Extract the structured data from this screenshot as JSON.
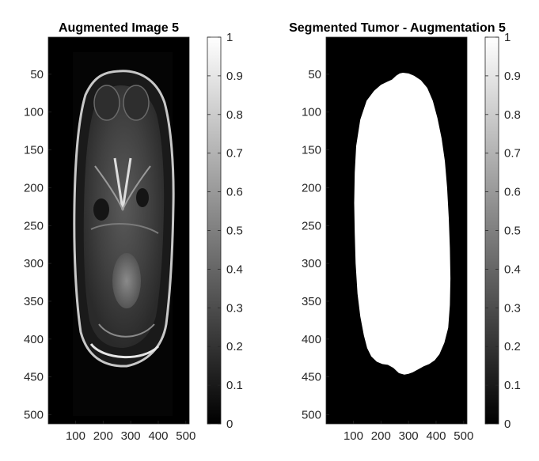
{
  "chart_data": [
    {
      "type": "heatmap",
      "title": "Augmented Image 5",
      "xlabel": "",
      "ylabel": "",
      "xlim": [
        1,
        512
      ],
      "ylim": [
        1,
        512
      ],
      "xticks": [
        100,
        200,
        300,
        400,
        500
      ],
      "yticks": [
        50,
        100,
        150,
        200,
        250,
        300,
        350,
        400,
        450,
        500
      ],
      "colormap": "gray",
      "clim": [
        0,
        1
      ],
      "colorbar_ticks": [
        0,
        0.1,
        0.2,
        0.3,
        0.4,
        0.5,
        0.6,
        0.7,
        0.8,
        0.9,
        1
      ],
      "colorbar_labels": [
        "0",
        "0.1",
        "0.2",
        "0.3",
        "0.4",
        "0.5",
        "0.6",
        "0.7",
        "0.8",
        "0.9",
        "1"
      ],
      "image_content": "grayscale axial MRI slice"
    },
    {
      "type": "heatmap",
      "title": "Segmented Tumor - Augmentation 5",
      "xlabel": "",
      "ylabel": "",
      "xlim": [
        1,
        512
      ],
      "ylim": [
        1,
        512
      ],
      "xticks": [
        100,
        200,
        300,
        400,
        500
      ],
      "yticks": [
        50,
        100,
        150,
        200,
        250,
        300,
        350,
        400,
        450,
        500
      ],
      "colormap": "gray",
      "clim": [
        0,
        1
      ],
      "colorbar_ticks": [
        0,
        0.1,
        0.2,
        0.3,
        0.4,
        0.5,
        0.6,
        0.7,
        0.8,
        0.9,
        1
      ],
      "colorbar_labels": [
        "0",
        "0.1",
        "0.2",
        "0.3",
        "0.4",
        "0.5",
        "0.6",
        "0.7",
        "0.8",
        "0.9",
        "1"
      ],
      "image_content": "binary mask, white region on black background",
      "mask_outline": [
        {
          "x": 280,
          "y": 48
        },
        {
          "x": 300,
          "y": 49
        },
        {
          "x": 320,
          "y": 52
        },
        {
          "x": 345,
          "y": 58
        },
        {
          "x": 368,
          "y": 68
        },
        {
          "x": 388,
          "y": 85
        },
        {
          "x": 405,
          "y": 108
        },
        {
          "x": 420,
          "y": 135
        },
        {
          "x": 432,
          "y": 165
        },
        {
          "x": 440,
          "y": 200
        },
        {
          "x": 446,
          "y": 240
        },
        {
          "x": 450,
          "y": 280
        },
        {
          "x": 452,
          "y": 320
        },
        {
          "x": 450,
          "y": 355
        },
        {
          "x": 444,
          "y": 385
        },
        {
          "x": 430,
          "y": 405
        },
        {
          "x": 412,
          "y": 420
        },
        {
          "x": 395,
          "y": 428
        },
        {
          "x": 375,
          "y": 433
        },
        {
          "x": 355,
          "y": 436
        },
        {
          "x": 335,
          "y": 440
        },
        {
          "x": 315,
          "y": 444
        },
        {
          "x": 300,
          "y": 446
        },
        {
          "x": 285,
          "y": 447
        },
        {
          "x": 265,
          "y": 445
        },
        {
          "x": 245,
          "y": 438
        },
        {
          "x": 225,
          "y": 434
        },
        {
          "x": 205,
          "y": 433
        },
        {
          "x": 185,
          "y": 430
        },
        {
          "x": 165,
          "y": 423
        },
        {
          "x": 150,
          "y": 412
        },
        {
          "x": 138,
          "y": 395
        },
        {
          "x": 125,
          "y": 370
        },
        {
          "x": 115,
          "y": 340
        },
        {
          "x": 108,
          "y": 300
        },
        {
          "x": 105,
          "y": 260
        },
        {
          "x": 103,
          "y": 220
        },
        {
          "x": 105,
          "y": 180
        },
        {
          "x": 110,
          "y": 145
        },
        {
          "x": 125,
          "y": 110
        },
        {
          "x": 148,
          "y": 85
        },
        {
          "x": 175,
          "y": 72
        },
        {
          "x": 200,
          "y": 64
        },
        {
          "x": 222,
          "y": 60
        },
        {
          "x": 240,
          "y": 57
        },
        {
          "x": 255,
          "y": 52
        },
        {
          "x": 268,
          "y": 49
        }
      ]
    }
  ]
}
